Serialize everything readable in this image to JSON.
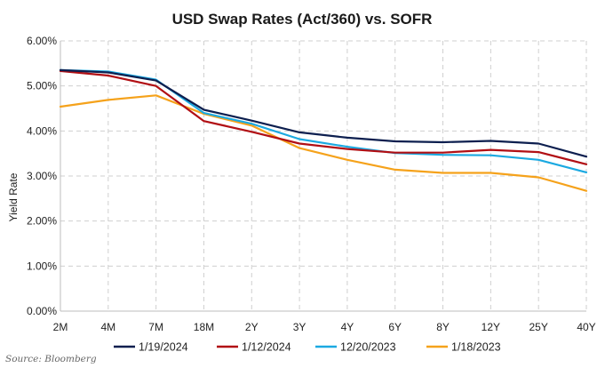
{
  "chart_data": {
    "type": "line",
    "title": "USD Swap Rates (Act/360) vs. SOFR",
    "ylabel": "Yield Rate",
    "xlabel": "",
    "categories": [
      "2M",
      "4M",
      "7M",
      "18M",
      "2Y",
      "3Y",
      "4Y",
      "6Y",
      "8Y",
      "12Y",
      "25Y",
      "40Y"
    ],
    "ylim": [
      0,
      6
    ],
    "ytick_labels": [
      "0.00%",
      "1.00%",
      "2.00%",
      "3.00%",
      "4.00%",
      "5.00%",
      "6.00%"
    ],
    "grid": true,
    "legend_position": "bottom",
    "series": [
      {
        "name": "1/19/2024",
        "color": "#0d1f4f",
        "values": [
          5.35,
          5.3,
          5.12,
          4.47,
          4.23,
          3.97,
          3.85,
          3.77,
          3.75,
          3.78,
          3.72,
          3.43
        ]
      },
      {
        "name": "1/12/2024",
        "color": "#b10f14",
        "values": [
          5.33,
          5.23,
          5.0,
          4.22,
          3.98,
          3.72,
          3.6,
          3.52,
          3.52,
          3.58,
          3.53,
          3.26
        ]
      },
      {
        "name": "12/20/2023",
        "color": "#1ba9e1",
        "values": [
          5.35,
          5.32,
          5.14,
          4.4,
          4.16,
          3.82,
          3.65,
          3.51,
          3.47,
          3.46,
          3.36,
          3.08
        ]
      },
      {
        "name": "1/18/2023",
        "color": "#f5a21b",
        "values": [
          4.54,
          4.69,
          4.79,
          4.38,
          4.12,
          3.62,
          3.36,
          3.14,
          3.07,
          3.07,
          2.97,
          2.67
        ]
      }
    ]
  },
  "source": "Source: Bloomberg"
}
